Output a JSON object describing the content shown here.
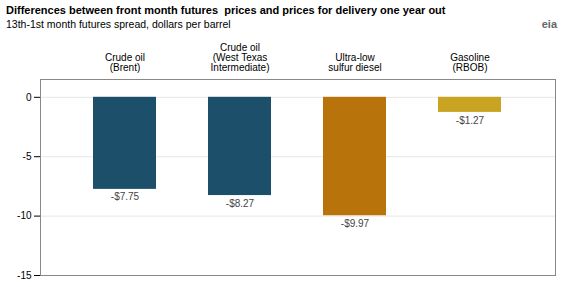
{
  "chart_data": {
    "type": "bar",
    "title": "Differences between front month futures  prices and prices for delivery one year out",
    "subtitle": "13th-1st month futures spread, dollars per barrel",
    "annotations": [
      "eia"
    ],
    "categories": [
      "Crude oil\n(Brent)",
      "Crude oil\n(West Texas\nIntermediate)",
      "Ultra-low\nsulfur diesel",
      "Gasoline\n(RBOB)"
    ],
    "values": [
      -7.75,
      -8.27,
      -9.97,
      -1.27
    ],
    "value_labels": [
      "-$7.75",
      "-$8.27",
      "-$9.97",
      "-$1.27"
    ],
    "colors": [
      "#1b4f6a",
      "#1b4f6a",
      "#b8730a",
      "#c8a422"
    ],
    "ylim": [
      -15,
      1.5
    ],
    "yticks": [
      0,
      -5,
      -10,
      -15
    ],
    "grid": true,
    "data_labels": true
  }
}
